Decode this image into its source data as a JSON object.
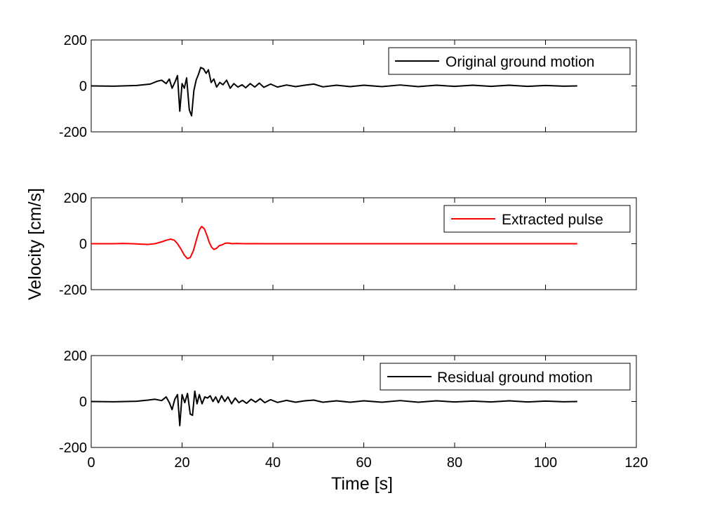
{
  "chart_data": [
    {
      "type": "line",
      "title": "",
      "xlabel": "",
      "ylabel": "",
      "xlim": [
        0,
        120
      ],
      "ylim": [
        -200,
        200
      ],
      "yticks": [
        200,
        0,
        -200
      ],
      "show_xticklabels": false,
      "grid": false,
      "legend_position": "top-right",
      "series": [
        {
          "name": "Original ground motion",
          "color": "#000000",
          "points": [
            [
              0,
              0
            ],
            [
              5,
              -1
            ],
            [
              10,
              2
            ],
            [
              13,
              8
            ],
            [
              14.5,
              20
            ],
            [
              15.5,
              25
            ],
            [
              16.5,
              10
            ],
            [
              17.2,
              30
            ],
            [
              17.8,
              -10
            ],
            [
              18.4,
              15
            ],
            [
              19.0,
              45
            ],
            [
              19.5,
              -110
            ],
            [
              20.0,
              10
            ],
            [
              20.5,
              -10
            ],
            [
              21.0,
              35
            ],
            [
              21.6,
              -105
            ],
            [
              22.1,
              -130
            ],
            [
              22.6,
              -20
            ],
            [
              23.1,
              25
            ],
            [
              23.6,
              50
            ],
            [
              24.1,
              80
            ],
            [
              24.7,
              75
            ],
            [
              25.3,
              55
            ],
            [
              25.8,
              70
            ],
            [
              26.4,
              15
            ],
            [
              27.0,
              30
            ],
            [
              27.6,
              -5
            ],
            [
              28.3,
              15
            ],
            [
              29.0,
              5
            ],
            [
              29.8,
              25
            ],
            [
              30.6,
              -10
            ],
            [
              31.4,
              10
            ],
            [
              32.3,
              -5
            ],
            [
              33.2,
              5
            ],
            [
              34.0,
              -8
            ],
            [
              35.0,
              10
            ],
            [
              36.0,
              -5
            ],
            [
              37.0,
              12
            ],
            [
              38.0,
              -6
            ],
            [
              39.5,
              8
            ],
            [
              41.0,
              -5
            ],
            [
              43.0,
              4
            ],
            [
              45.0,
              -3
            ],
            [
              47.0,
              3
            ],
            [
              49.0,
              8
            ],
            [
              51.0,
              -4
            ],
            [
              54.0,
              3
            ],
            [
              57.0,
              -3
            ],
            [
              60.0,
              3
            ],
            [
              64.0,
              -3
            ],
            [
              68.0,
              4
            ],
            [
              72.0,
              -3
            ],
            [
              76.0,
              3
            ],
            [
              80.0,
              -2
            ],
            [
              84.0,
              3
            ],
            [
              88.0,
              -2
            ],
            [
              92.0,
              3
            ],
            [
              96.0,
              -2
            ],
            [
              100.0,
              2
            ],
            [
              104.0,
              -1
            ],
            [
              107.0,
              0
            ]
          ]
        }
      ]
    },
    {
      "type": "line",
      "title": "",
      "xlabel": "",
      "ylabel": "Velocity [cm/s]",
      "xlim": [
        0,
        120
      ],
      "ylim": [
        -200,
        200
      ],
      "yticks": [
        200,
        0,
        -200
      ],
      "show_xticklabels": false,
      "grid": false,
      "legend_position": "top-right",
      "series": [
        {
          "name": "Extracted pulse",
          "color": "#ff0000",
          "points": [
            [
              0,
              0
            ],
            [
              5,
              0
            ],
            [
              7,
              1
            ],
            [
              9,
              0
            ],
            [
              11,
              -2
            ],
            [
              12.5,
              -3
            ],
            [
              14,
              0
            ],
            [
              15.5,
              8
            ],
            [
              16.5,
              15
            ],
            [
              17.5,
              20
            ],
            [
              18.3,
              15
            ],
            [
              19.0,
              0
            ],
            [
              19.8,
              -25
            ],
            [
              20.5,
              -50
            ],
            [
              21.2,
              -65
            ],
            [
              21.8,
              -60
            ],
            [
              22.5,
              -30
            ],
            [
              23.2,
              20
            ],
            [
              23.8,
              60
            ],
            [
              24.3,
              75
            ],
            [
              24.9,
              65
            ],
            [
              25.5,
              35
            ],
            [
              26.0,
              5
            ],
            [
              26.5,
              -15
            ],
            [
              27.0,
              -25
            ],
            [
              27.6,
              -20
            ],
            [
              28.2,
              -8
            ],
            [
              28.8,
              -5
            ],
            [
              29.5,
              2
            ],
            [
              30.2,
              3
            ],
            [
              31.0,
              0
            ],
            [
              32.0,
              1
            ],
            [
              34.0,
              0
            ],
            [
              36.0,
              0.5
            ],
            [
              38.0,
              0
            ],
            [
              40.0,
              0
            ],
            [
              60.0,
              0
            ],
            [
              80.0,
              0
            ],
            [
              107.0,
              0
            ]
          ]
        }
      ]
    },
    {
      "type": "line",
      "title": "",
      "xlabel": "Time [s]",
      "ylabel": "",
      "xlim": [
        0,
        120
      ],
      "ylim": [
        -200,
        200
      ],
      "yticks": [
        200,
        0,
        -200
      ],
      "xticks": [
        0,
        20,
        40,
        60,
        80,
        100,
        120
      ],
      "show_xticklabels": true,
      "grid": false,
      "legend_position": "top-right",
      "series": [
        {
          "name": "Residual ground motion",
          "color": "#000000",
          "points": [
            [
              0,
              0
            ],
            [
              5,
              -1
            ],
            [
              10,
              1
            ],
            [
              12.5,
              6
            ],
            [
              14,
              10
            ],
            [
              15.5,
              4
            ],
            [
              16.5,
              20
            ],
            [
              17.2,
              -5
            ],
            [
              17.8,
              -35
            ],
            [
              18.4,
              10
            ],
            [
              19.0,
              30
            ],
            [
              19.5,
              -105
            ],
            [
              20.0,
              30
            ],
            [
              20.6,
              -5
            ],
            [
              21.2,
              35
            ],
            [
              21.8,
              -55
            ],
            [
              22.3,
              -60
            ],
            [
              22.8,
              45
            ],
            [
              23.3,
              -10
            ],
            [
              23.8,
              30
            ],
            [
              24.4,
              -10
            ],
            [
              25.0,
              20
            ],
            [
              25.6,
              15
            ],
            [
              26.2,
              25
            ],
            [
              26.8,
              0
            ],
            [
              27.4,
              20
            ],
            [
              28.0,
              -5
            ],
            [
              28.7,
              25
            ],
            [
              29.4,
              0
            ],
            [
              30.1,
              20
            ],
            [
              30.9,
              -10
            ],
            [
              31.7,
              15
            ],
            [
              32.5,
              -5
            ],
            [
              33.3,
              5
            ],
            [
              34.2,
              -8
            ],
            [
              35.2,
              10
            ],
            [
              36.2,
              -3
            ],
            [
              37.2,
              12
            ],
            [
              38.2,
              -5
            ],
            [
              39.5,
              8
            ],
            [
              41.0,
              -4
            ],
            [
              43.0,
              5
            ],
            [
              45.0,
              -3
            ],
            [
              47.0,
              3
            ],
            [
              49.0,
              6
            ],
            [
              51.0,
              -3
            ],
            [
              54.0,
              3
            ],
            [
              57.0,
              -3
            ],
            [
              60.0,
              3
            ],
            [
              64.0,
              -3
            ],
            [
              68.0,
              4
            ],
            [
              72.0,
              -3
            ],
            [
              76.0,
              3
            ],
            [
              80.0,
              -2
            ],
            [
              84.0,
              2
            ],
            [
              88.0,
              -2
            ],
            [
              92.0,
              3
            ],
            [
              96.0,
              -2
            ],
            [
              100.0,
              2
            ],
            [
              104.0,
              -1
            ],
            [
              107.0,
              0
            ]
          ]
        }
      ]
    }
  ]
}
